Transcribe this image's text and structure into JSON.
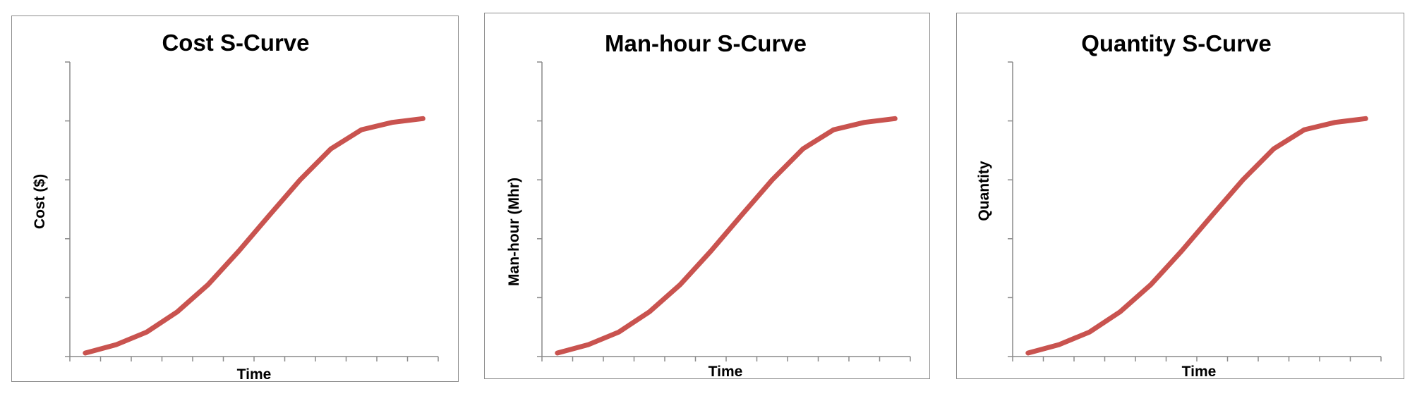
{
  "colors": {
    "series": "#c9534f",
    "axis": "#8a8a8a",
    "border": "#8c8c8c"
  },
  "chart_data": [
    {
      "type": "line",
      "title": "Cost S-Curve",
      "xlabel": "Time",
      "ylabel": "Cost ($)",
      "grid": false,
      "legend": "none",
      "x": [
        1,
        2,
        3,
        4,
        5,
        6,
        7,
        8,
        9,
        10,
        11,
        12
      ],
      "y_tick_count": 5,
      "ylim": [
        0,
        1
      ],
      "series": [
        {
          "values": [
            0.012,
            0.04,
            0.083,
            0.152,
            0.244,
            0.358,
            0.48,
            0.6,
            0.705,
            0.77,
            0.795,
            0.808
          ]
        }
      ]
    },
    {
      "type": "line",
      "title": "Man-hour S-Curve",
      "xlabel": "Time",
      "ylabel": "Man-hour (Mhr)",
      "grid": false,
      "legend": "none",
      "x": [
        1,
        2,
        3,
        4,
        5,
        6,
        7,
        8,
        9,
        10,
        11,
        12
      ],
      "y_tick_count": 5,
      "ylim": [
        0,
        1
      ],
      "series": [
        {
          "values": [
            0.012,
            0.04,
            0.083,
            0.152,
            0.244,
            0.358,
            0.48,
            0.6,
            0.705,
            0.77,
            0.795,
            0.808
          ]
        }
      ]
    },
    {
      "type": "line",
      "title": "Quantity S-Curve",
      "xlabel": "Time",
      "ylabel": "Quantity",
      "grid": false,
      "legend": "none",
      "x": [
        1,
        2,
        3,
        4,
        5,
        6,
        7,
        8,
        9,
        10,
        11,
        12
      ],
      "y_tick_count": 5,
      "ylim": [
        0,
        1
      ],
      "series": [
        {
          "values": [
            0.012,
            0.04,
            0.083,
            0.152,
            0.244,
            0.358,
            0.48,
            0.6,
            0.705,
            0.77,
            0.795,
            0.808
          ]
        }
      ]
    }
  ]
}
